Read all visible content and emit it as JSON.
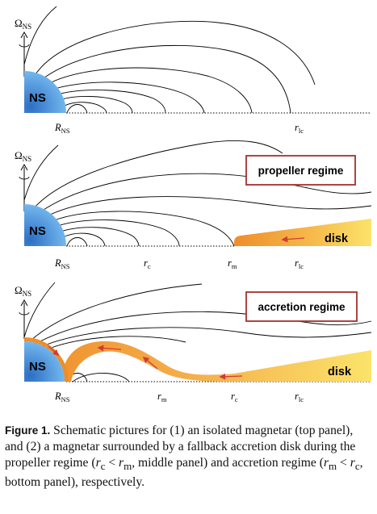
{
  "axis": {
    "omega_symbol": "Ω",
    "omega_sub": "NS"
  },
  "panels": [
    {
      "ns_label": "NS",
      "ticks": [
        {
          "sym": "R",
          "sub": "NS"
        },
        {
          "sym": "r",
          "sub": "lc"
        }
      ]
    },
    {
      "ns_label": "NS",
      "regime_label": "propeller regime",
      "disk_label": "disk",
      "ticks": [
        {
          "sym": "R",
          "sub": "NS"
        },
        {
          "sym": "r",
          "sub": "c"
        },
        {
          "sym": "r",
          "sub": "m"
        },
        {
          "sym": "r",
          "sub": "lc"
        }
      ]
    },
    {
      "ns_label": "NS",
      "regime_label": "accretion regime",
      "disk_label": "disk",
      "ticks": [
        {
          "sym": "R",
          "sub": "NS"
        },
        {
          "sym": "r",
          "sub": "m"
        },
        {
          "sym": "r",
          "sub": "c"
        },
        {
          "sym": "r",
          "sub": "lc"
        }
      ]
    }
  ],
  "caption": {
    "label": "Figure 1.",
    "text": "Schematic pictures for (1) an isolated magnetar (top panel), and (2) a magnetar surrounded by a fallback accretion disk during the propeller regime (",
    "cond1": {
      "a": "r",
      "a_sub": "c",
      "op": " < ",
      "b": "r",
      "b_sub": "m"
    },
    "mid": ", middle panel) and accretion regime (",
    "cond2": {
      "a": "r",
      "a_sub": "m",
      "op": " < ",
      "b": "r",
      "b_sub": "c"
    },
    "end": ", bottom panel), respectively."
  },
  "colors": {
    "ns_light": "#6fb3ec",
    "ns_dark": "#2c6fc4",
    "disk_orange": "#ee8e2a",
    "disk_yellow": "#fbe36a",
    "regime_box": "#a5302c",
    "arrow": "#d23a3a"
  }
}
